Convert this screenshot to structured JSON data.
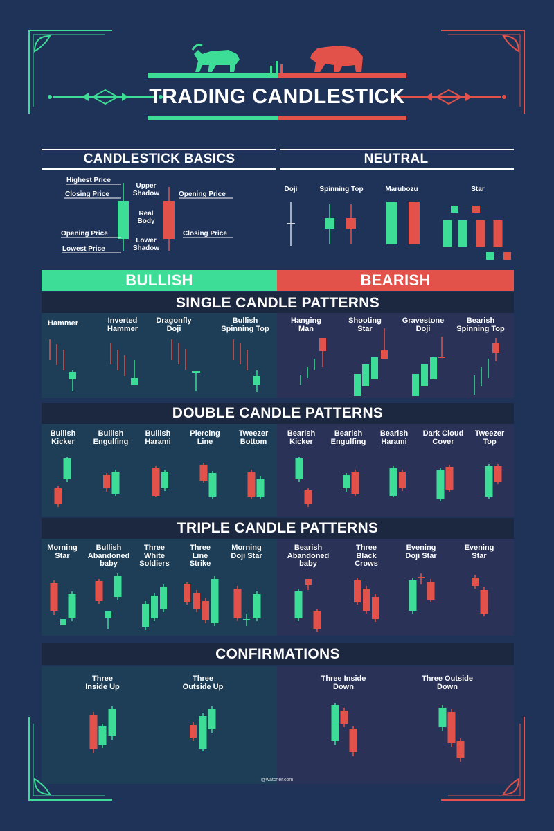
{
  "title": "TRADING CANDLESTICK",
  "watermark": "@watcher.com",
  "colors": {
    "background": "#1f3257",
    "bull": "#3ddc97",
    "bear": "#e2524a",
    "dark_band": "#1c2740",
    "bull_panel": "#1d3e56",
    "bear_panel": "#2a3257",
    "text": "#ffffff"
  },
  "icons": {
    "bull": "bull-icon",
    "bear": "bear-icon",
    "ornament": "ornament-icon",
    "corner": "corner-frame-icon"
  },
  "basics": {
    "title": "CANDLESTICK BASICS",
    "labels": {
      "highest_price": "Highest Price",
      "closing_price_left": "Closing Price",
      "opening_price_left": "Opening Price",
      "lowest_price": "Lowest Price",
      "upper_shadow": "Upper Shadow",
      "real_body": "Real Body",
      "lower_shadow": "Lower Shadow",
      "opening_price_right": "Opening Price",
      "closing_price_right": "Closing Price"
    }
  },
  "neutral": {
    "title": "NEUTRAL",
    "patterns": [
      "Doji",
      "Spinning Top",
      "Marubozu",
      "Star"
    ]
  },
  "bullish_title": "BULLISH",
  "bearish_title": "BEARISH",
  "single": {
    "title": "SINGLE CANDLE PATTERNS",
    "bull": [
      "Hammer",
      "Inverted Hammer",
      "Dragonfly Doji",
      "Bullish Spinning Top"
    ],
    "bear": [
      "Hanging Man",
      "Shooting Star",
      "Gravestone Doji",
      "Bearish Spinning Top"
    ]
  },
  "double": {
    "title": "DOUBLE CANDLE PATTERNS",
    "bull": [
      "Bullish Kicker",
      "Bullish Engulfing",
      "Bullish Harami",
      "Piercing Line",
      "Tweezer Bottom"
    ],
    "bear": [
      "Bearish Kicker",
      "Bearish Engulfing",
      "Bearish Harami",
      "Dark Cloud Cover",
      "Tweezer Top"
    ]
  },
  "triple": {
    "title": "TRIPLE CANDLE PATTERNS",
    "bull": [
      "Morning Star",
      "Bullish Abandoned baby",
      "Three White Soldiers",
      "Three Line Strike",
      "Morning Doji Star"
    ],
    "bear": [
      "Bearish Abandoned baby",
      "Three Black Crows",
      "Evening Doji Star",
      "Evening Star"
    ]
  },
  "confirm": {
    "title": "CONFIRMATIONS",
    "bull": [
      "Three Inside Up",
      "Three Outside Up"
    ],
    "bear": [
      "Three Inside Down",
      "Three Outside Down"
    ]
  }
}
